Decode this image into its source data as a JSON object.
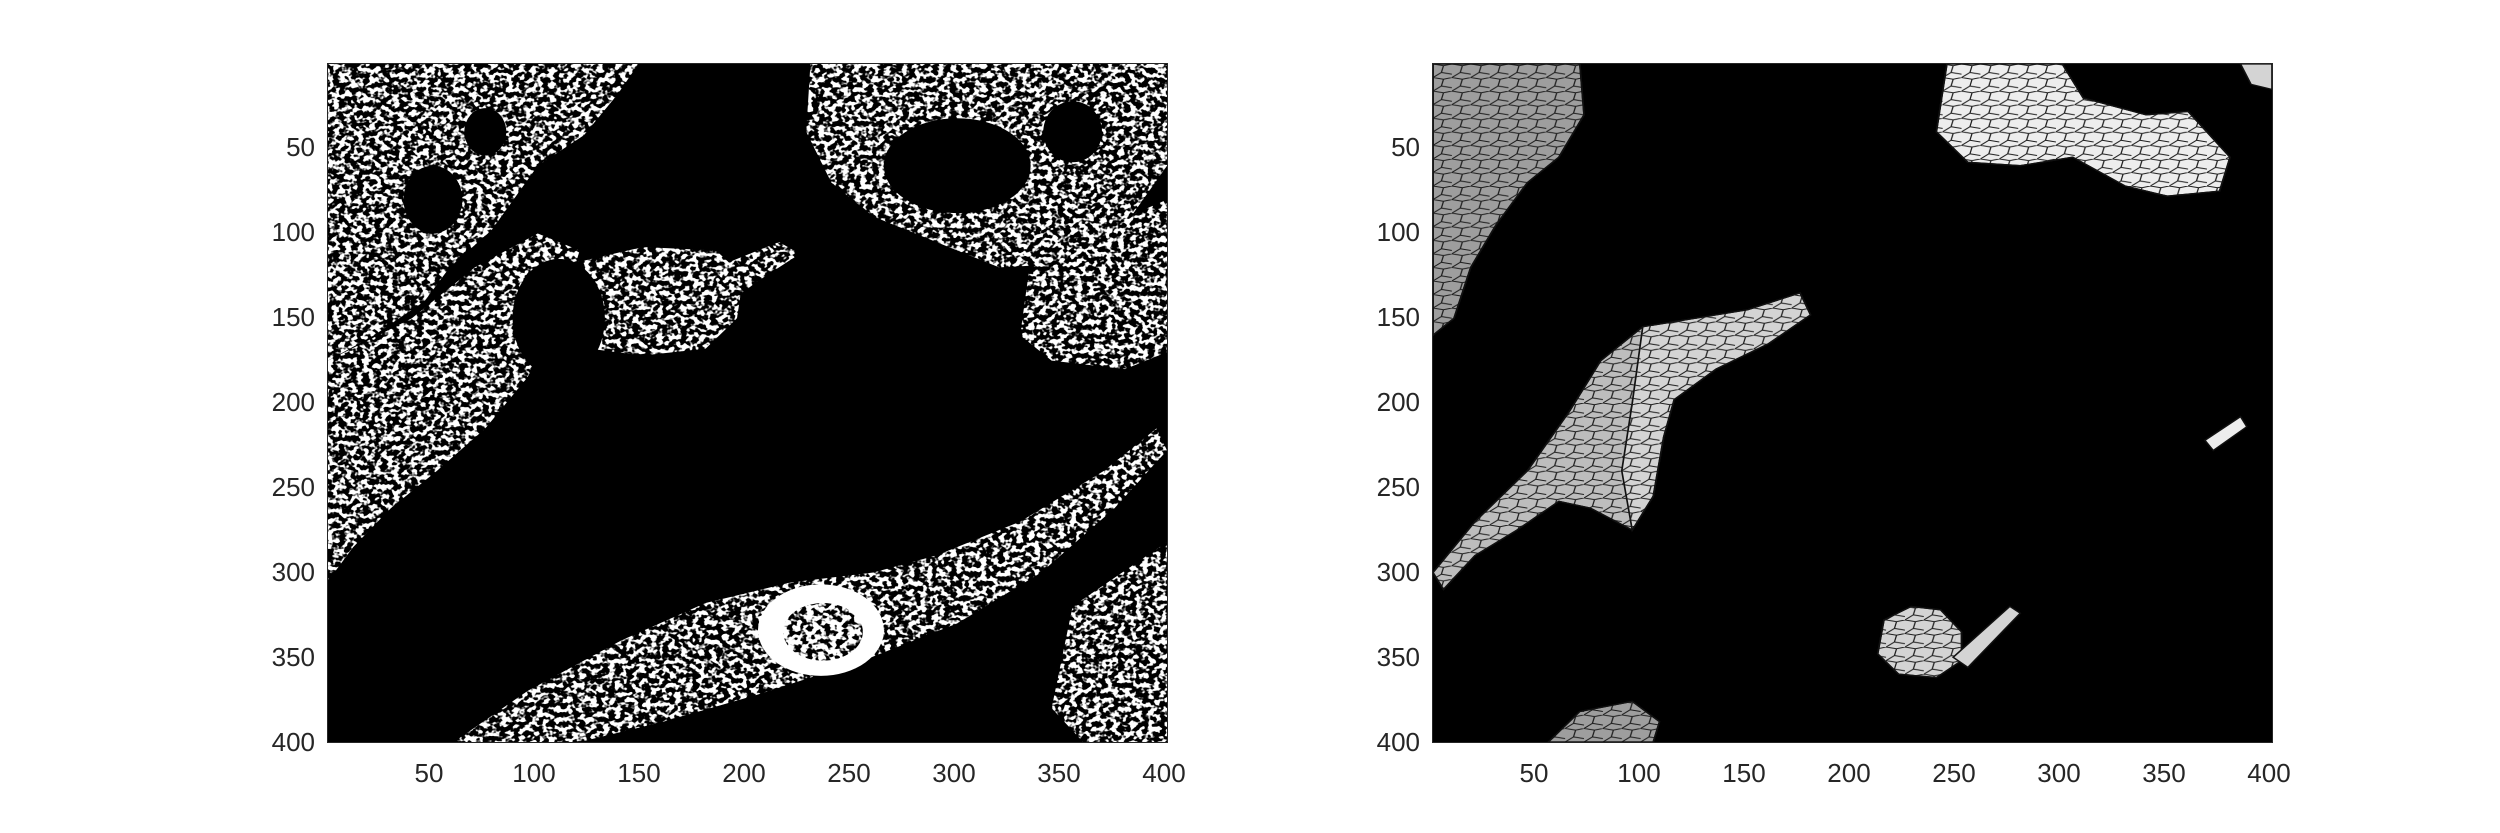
{
  "figure": {
    "subplots": [
      {
        "id": "binary-mask",
        "xticks": [
          "50",
          "100",
          "150",
          "200",
          "250",
          "300",
          "350",
          "400"
        ],
        "yticks": [
          "50",
          "100",
          "150",
          "200",
          "250",
          "300",
          "350",
          "400"
        ],
        "xlim": [
          0.5,
          400.5
        ],
        "ylim": [
          0.5,
          400.5
        ],
        "y_direction": "reversed",
        "colormap": [
          "#000000",
          "#ffffff"
        ]
      },
      {
        "id": "superpixel-segmentation",
        "xticks": [
          "50",
          "100",
          "150",
          "200",
          "250",
          "300",
          "350",
          "400"
        ],
        "yticks": [
          "50",
          "100",
          "150",
          "200",
          "250",
          "300",
          "350",
          "400"
        ],
        "xlim": [
          0.5,
          400.5
        ],
        "ylim": [
          0.5,
          400.5
        ],
        "y_direction": "reversed",
        "colormap": [
          "#000000",
          "#9e9e9e",
          "#bdbdbd",
          "#d4d4d4",
          "#ededed"
        ]
      }
    ]
  }
}
